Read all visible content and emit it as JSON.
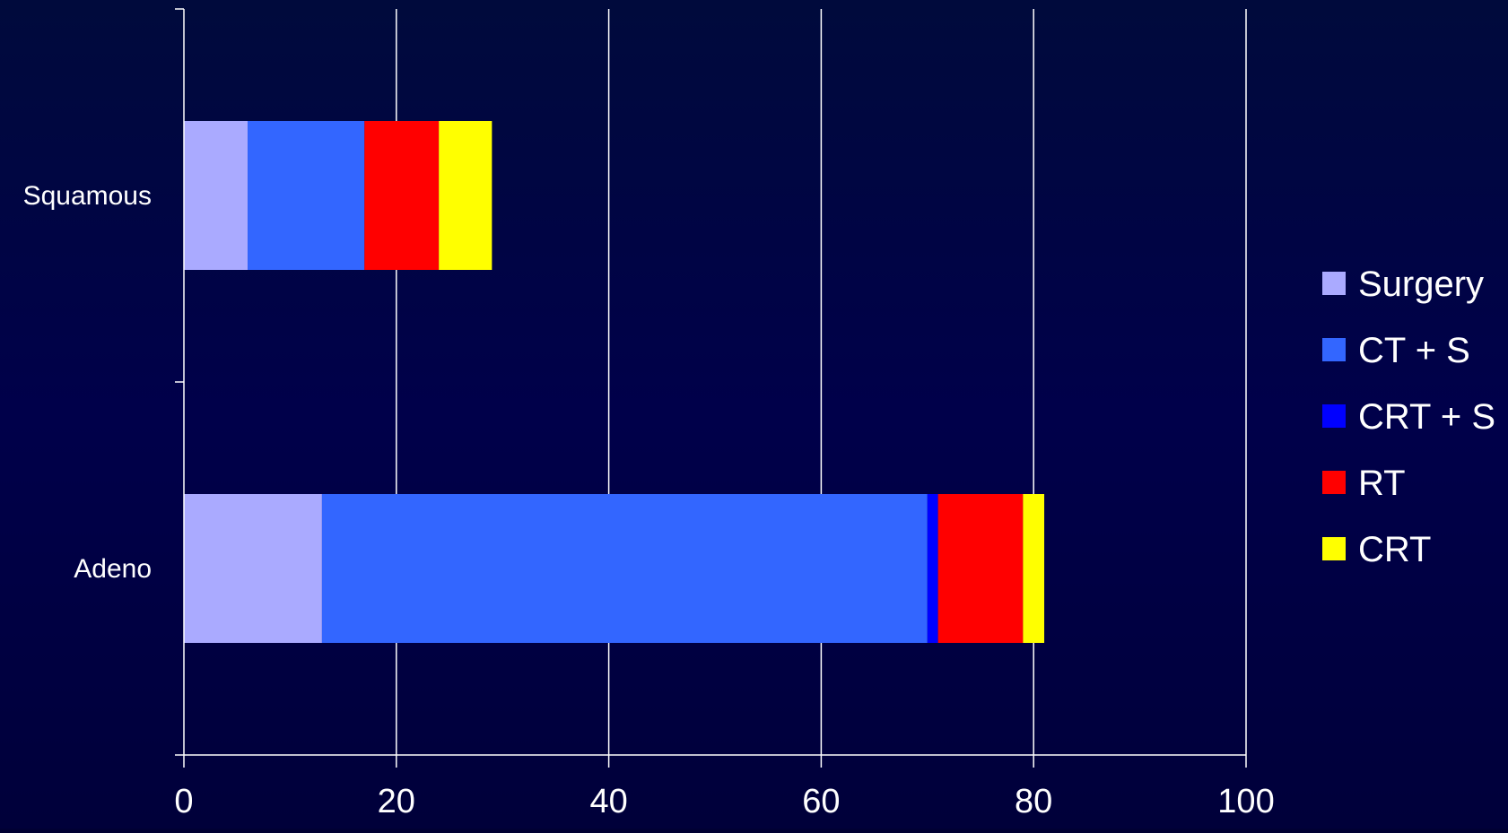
{
  "chart_data": {
    "type": "bar",
    "orientation": "horizontal",
    "stacked": true,
    "categories": [
      "Squamous",
      "Adeno"
    ],
    "series": [
      {
        "name": "Surgery",
        "color": "#aaaaff",
        "values": [
          6,
          13
        ]
      },
      {
        "name": "CT + S",
        "color": "#3366ff",
        "values": [
          11,
          57
        ]
      },
      {
        "name": "CRT + S",
        "color": "#0000ff",
        "values": [
          0,
          1
        ]
      },
      {
        "name": "RT",
        "color": "#ff0000",
        "values": [
          7,
          8
        ]
      },
      {
        "name": "CRT",
        "color": "#ffff00",
        "values": [
          5,
          2
        ]
      }
    ],
    "xlim": [
      0,
      100
    ],
    "xticks": [
      0,
      20,
      40,
      60,
      80,
      100
    ],
    "grid": true,
    "legend_position": "right",
    "title": "",
    "xlabel": "",
    "ylabel": ""
  },
  "colors": {
    "background": "#000040",
    "grid": "#ffffff",
    "text": "#ffffff"
  }
}
